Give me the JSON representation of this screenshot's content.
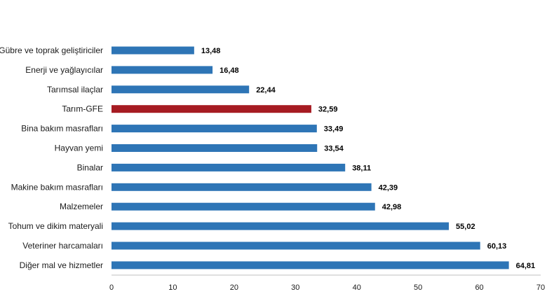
{
  "chart_data": {
    "type": "bar",
    "orientation": "horizontal",
    "categories": [
      "Gübre ve toprak geliştiriciler",
      "Enerji  ve yağlayıcılar",
      "Tarımsal ilaçlar",
      "Tarım-GFE",
      "Bina bakım masrafları",
      "Hayvan yemi",
      "Binalar",
      "Makine bakım masrafları",
      "Malzemeler",
      "Tohum ve dikim materyali",
      "Veteriner harcamaları",
      "Diğer mal ve hizmetler"
    ],
    "values": [
      13.48,
      16.48,
      22.44,
      32.59,
      33.49,
      33.54,
      38.11,
      42.39,
      42.98,
      55.02,
      60.13,
      64.81
    ],
    "value_labels": [
      "13,48",
      "16,48",
      "22,44",
      "32,59",
      "33,49",
      "33,54",
      "38,11",
      "42,39",
      "42,98",
      "55,02",
      "60,13",
      "64,81"
    ],
    "highlight_index": 3,
    "xlim": [
      0,
      70
    ],
    "xticks": [
      "0",
      "10",
      "20",
      "30",
      "40",
      "50",
      "60",
      "70"
    ],
    "grid": false,
    "legend": "none",
    "colors": {
      "bar": "#2e75b6",
      "highlight": "#a61b22"
    }
  }
}
